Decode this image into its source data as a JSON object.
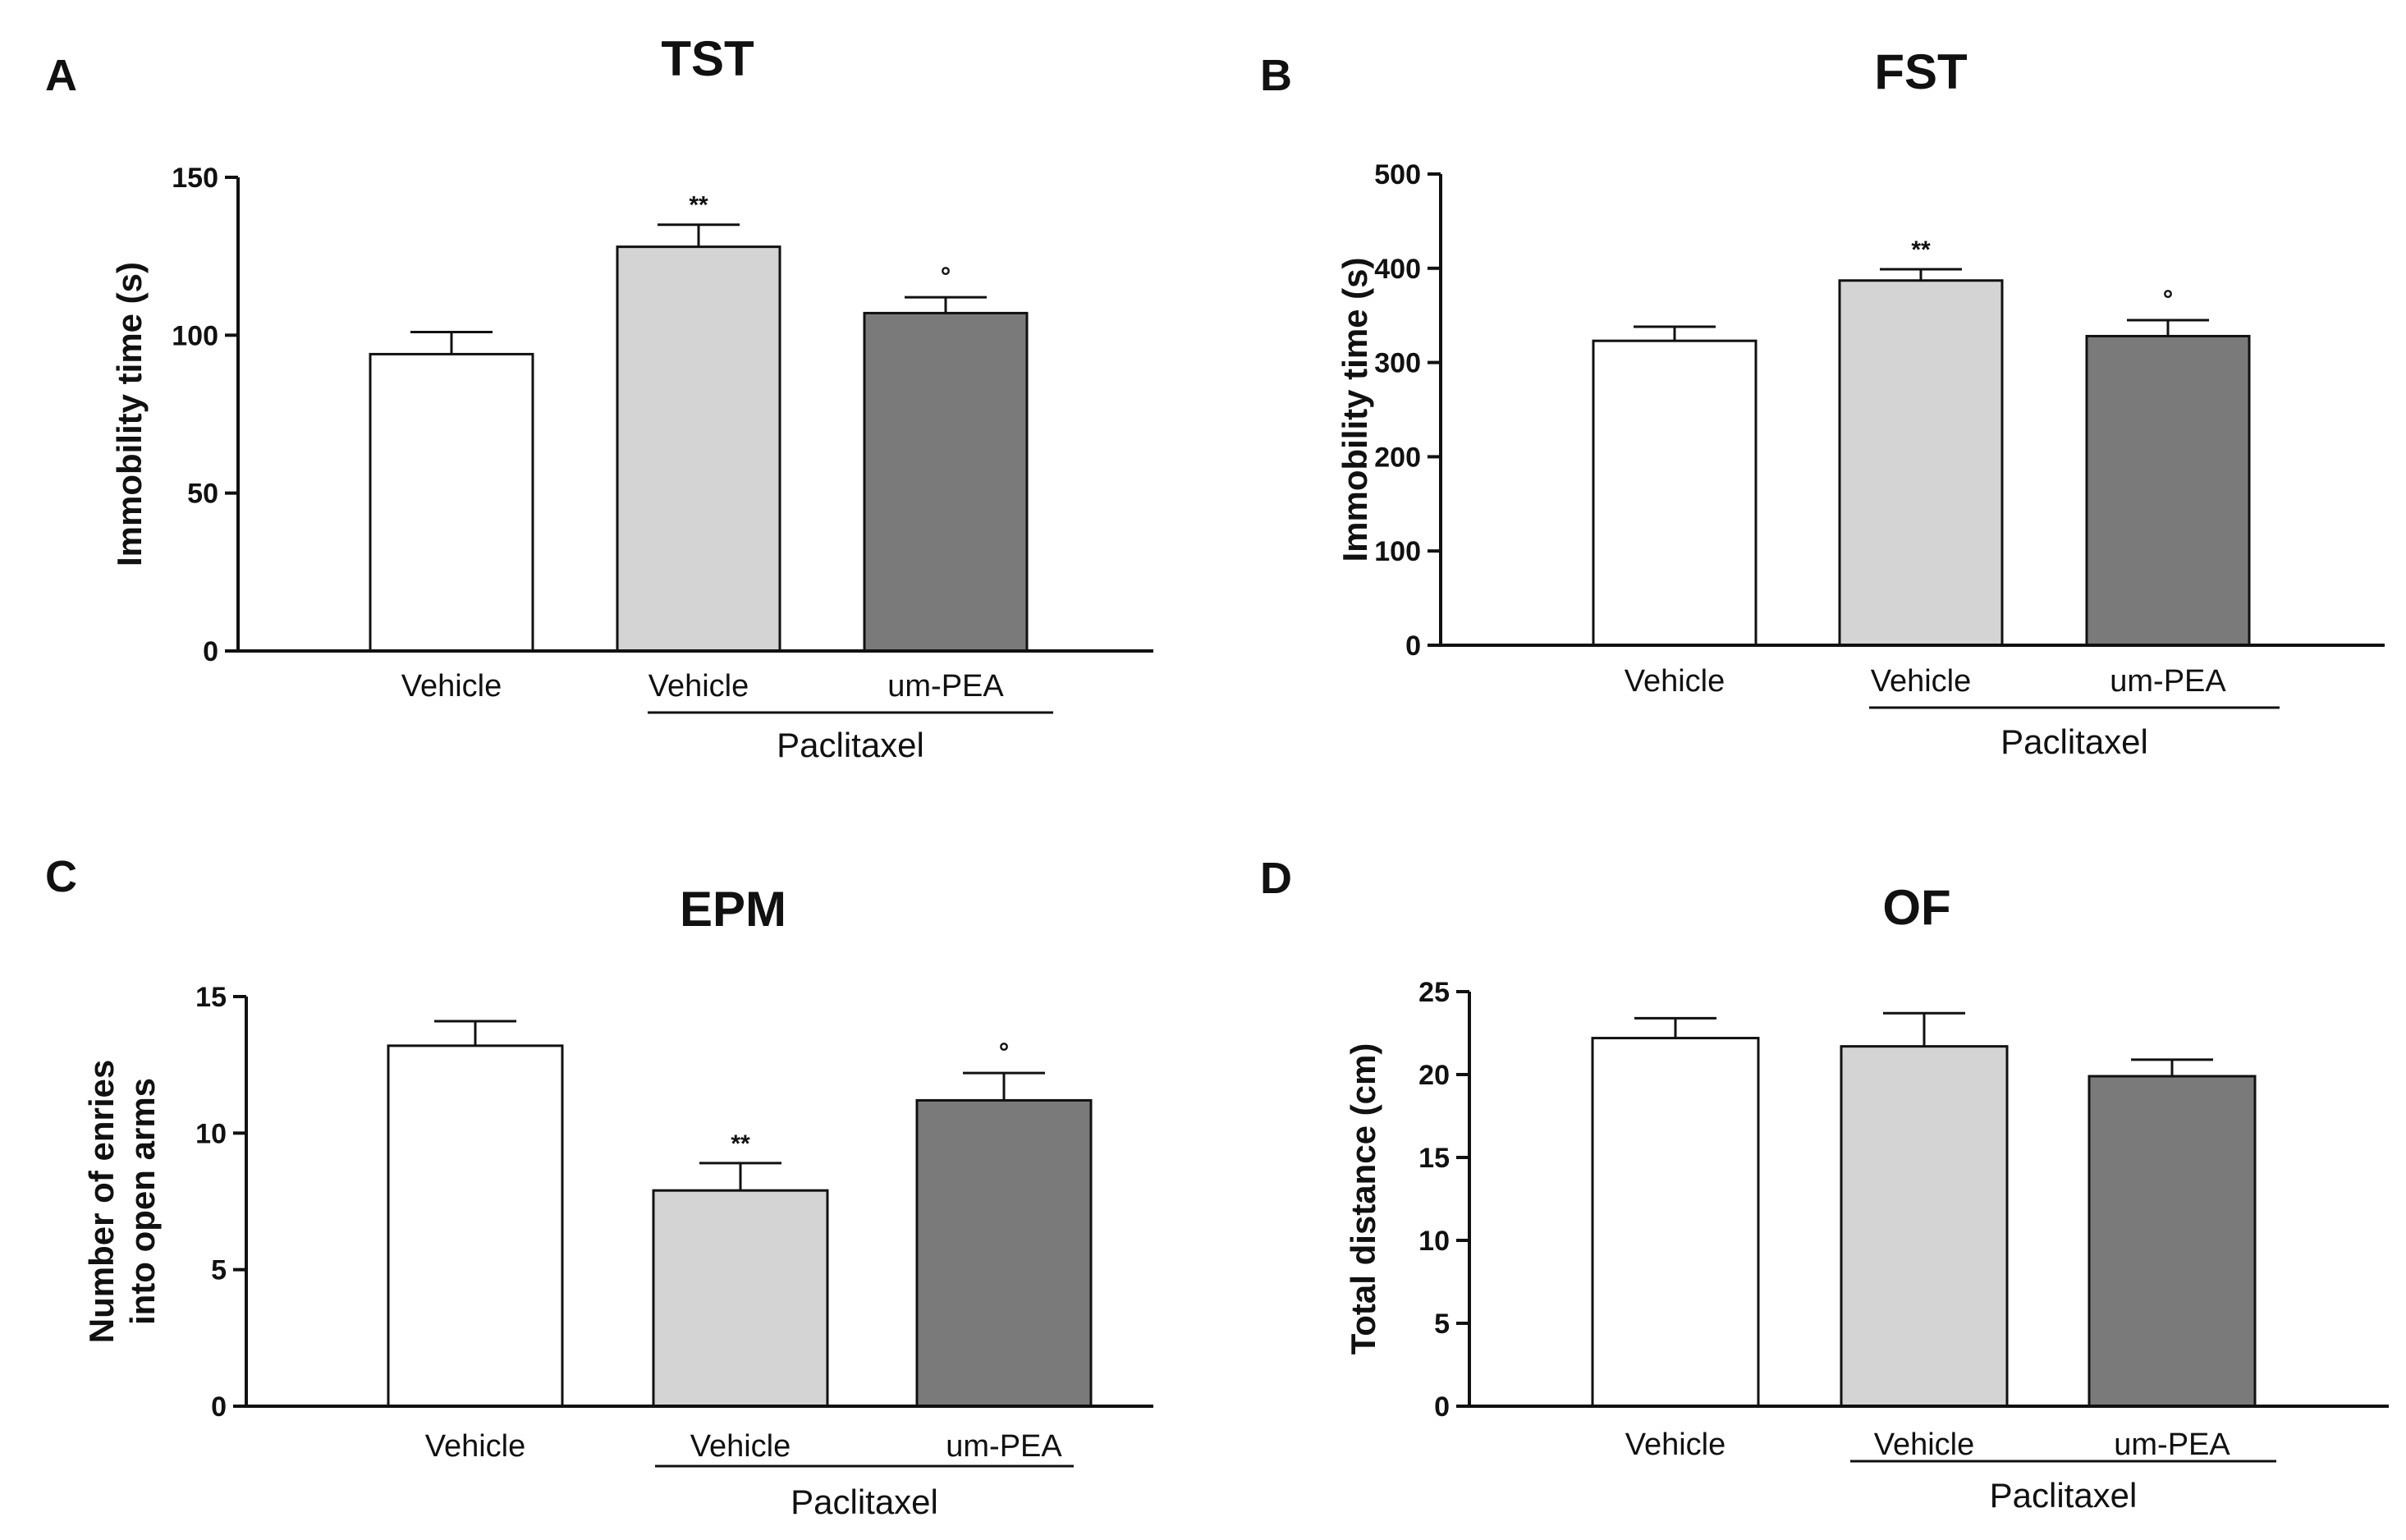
{
  "chart_data": [
    {
      "panel": "A",
      "type": "bar",
      "title": "TST",
      "ylabel": "Immobility time (s)",
      "ylabel_lines": [],
      "xlabel": "",
      "ylim": [
        0,
        150
      ],
      "yticks": [
        0,
        50,
        100,
        150
      ],
      "categories": [
        "Vehicle",
        "Vehicle",
        "um-PEA"
      ],
      "values": [
        94,
        128,
        107
      ],
      "errors": [
        7,
        7,
        5
      ],
      "annotations": [
        "",
        "**",
        "°"
      ],
      "bar_colors": [
        "#ffffff",
        "#d4d4d4",
        "#7a7a7a"
      ],
      "group_label": "Paclitaxel"
    },
    {
      "panel": "B",
      "type": "bar",
      "title": "FST",
      "ylabel": "Immobility time (s)",
      "ylabel_lines": [],
      "xlabel": "",
      "ylim": [
        0,
        500
      ],
      "yticks": [
        0,
        100,
        200,
        300,
        400,
        500
      ],
      "categories": [
        "Vehicle",
        "Vehicle",
        "um-PEA"
      ],
      "values": [
        323,
        387,
        328
      ],
      "errors": [
        15,
        12,
        17
      ],
      "annotations": [
        "",
        "**",
        "°"
      ],
      "bar_colors": [
        "#ffffff",
        "#d4d4d4",
        "#7a7a7a"
      ],
      "group_label": "Paclitaxel"
    },
    {
      "panel": "C",
      "type": "bar",
      "title": "EPM",
      "ylabel": "",
      "ylabel_lines": [
        "Number of enries",
        "into open arms"
      ],
      "xlabel": "",
      "ylim": [
        0,
        15
      ],
      "yticks": [
        0,
        5,
        10,
        15
      ],
      "categories": [
        "Vehicle",
        "Vehicle",
        "um-PEA"
      ],
      "values": [
        13.2,
        7.9,
        11.2
      ],
      "errors": [
        0.9,
        1.0,
        1.0
      ],
      "annotations": [
        "",
        "**",
        "°"
      ],
      "bar_colors": [
        "#ffffff",
        "#d4d4d4",
        "#7a7a7a"
      ],
      "group_label": "Paclitaxel"
    },
    {
      "panel": "D",
      "type": "bar",
      "title": "OF",
      "ylabel": "Total distance (cm)",
      "ylabel_lines": [],
      "xlabel": "",
      "ylim": [
        0,
        25
      ],
      "yticks": [
        0,
        5,
        10,
        15,
        20,
        25
      ],
      "categories": [
        "Vehicle",
        "Vehicle",
        "um-PEA"
      ],
      "values": [
        22.2,
        21.7,
        19.9
      ],
      "errors": [
        1.2,
        2.0,
        1.0
      ],
      "annotations": [
        "",
        "",
        ""
      ],
      "bar_colors": [
        "#ffffff",
        "#d4d4d4",
        "#7a7a7a"
      ],
      "group_label": "Paclitaxel"
    }
  ]
}
